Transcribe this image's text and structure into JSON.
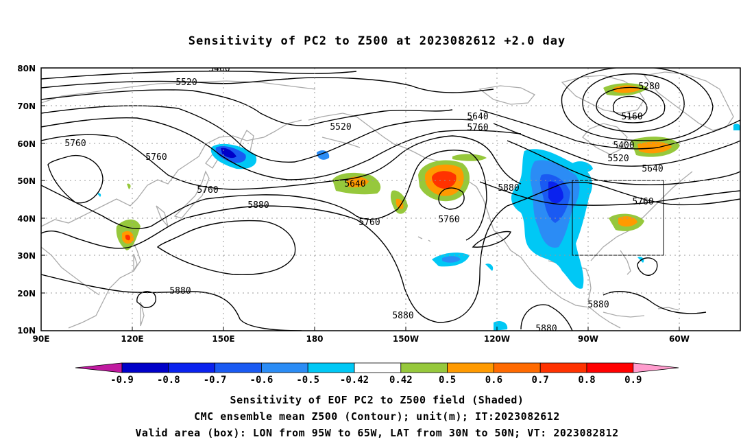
{
  "title": "Sensitivity of PC2 to Z500 at 2023082612 +2.0 day",
  "map": {
    "lat_ticks": [
      "80N",
      "70N",
      "60N",
      "50N",
      "40N",
      "30N",
      "20N",
      "10N"
    ],
    "lon_ticks": [
      "90E",
      "120E",
      "150E",
      "180",
      "150W",
      "120W",
      "90W",
      "60W"
    ],
    "lon_range_deg": [
      90,
      320
    ],
    "lat_range_deg": [
      10,
      80
    ],
    "valid_box": {
      "lon_west": "95W",
      "lon_east": "65W",
      "lat_south": "30N",
      "lat_north": "50N"
    },
    "contour_labels": [
      "5400",
      "5520",
      "5520",
      "5280",
      "5160",
      "5400",
      "5520",
      "5640",
      "5640",
      "5760",
      "5760",
      "5760",
      "5760",
      "5760",
      "5760",
      "5760",
      "5640",
      "5880",
      "5880",
      "5880",
      "5880",
      "5880",
      "5880"
    ],
    "colors": {
      "map_outline": "#aaaaaa",
      "contour": "#000000",
      "grid": "#999999"
    }
  },
  "colorbar": {
    "labels": [
      "-0.9",
      "-0.8",
      "-0.7",
      "-0.6",
      "-0.5",
      "-0.42",
      "0.42",
      "0.5",
      "0.6",
      "0.7",
      "0.8",
      "0.9"
    ],
    "colors": [
      "#c01aa0",
      "#0000c8",
      "#0a22ee",
      "#1a5af2",
      "#2b8cf5",
      "#00c8f5",
      "#ffffff",
      "#96c83c",
      "#ff9a00",
      "#ff6a00",
      "#ff3200",
      "#ff0000",
      "#ff9ccd"
    ]
  },
  "captions": [
    "Sensitivity of EOF PC2 to Z500 field (Shaded)",
    "CMC ensemble mean Z500 (Contour); unit(m); IT:2023082612",
    "Valid area (box): LON from 95W to 65W, LAT from 30N to 50N; VT: 2023082812"
  ]
}
